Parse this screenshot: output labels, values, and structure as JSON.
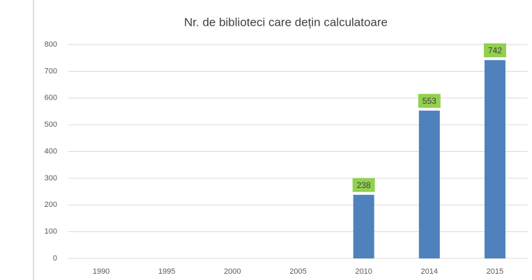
{
  "chart_data": {
    "type": "bar",
    "title": "Nr. de biblioteci care dețin calculatoare",
    "categories": [
      "1990",
      "1995",
      "2000",
      "2005",
      "2010",
      "2014",
      "2015"
    ],
    "values": [
      null,
      null,
      null,
      null,
      238,
      553,
      742
    ],
    "color": "#4f81bd",
    "label_color": "#92d050",
    "ylim": [
      0,
      800
    ],
    "yticks": [
      0,
      100,
      200,
      300,
      400,
      500,
      600,
      700,
      800
    ],
    "grid": true
  }
}
